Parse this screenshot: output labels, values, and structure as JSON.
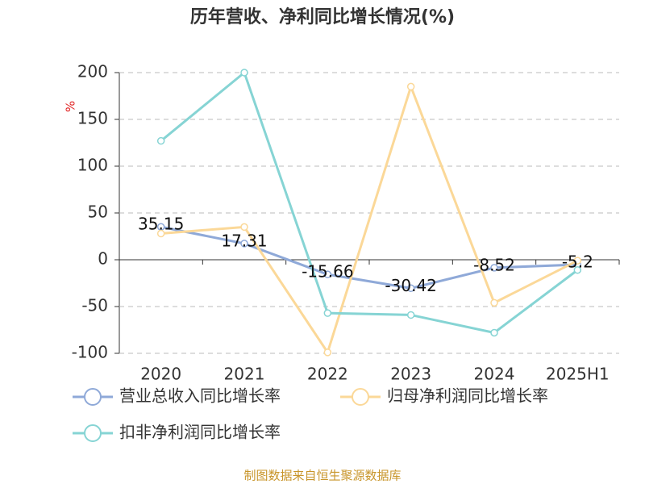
{
  "chart_data": {
    "type": "line",
    "title": "历年营收、净利同比增长情况(%)",
    "y_label": "%",
    "source": "制图数据来自恒生聚源数据库",
    "categories": [
      "2020",
      "2021",
      "2022",
      "2023",
      "2024",
      "2025H1"
    ],
    "series": [
      {
        "name": "营业总收入同比增长率",
        "color": "#8fa9d8",
        "values": [
          35.15,
          17.31,
          -15.66,
          -30.42,
          -8.52,
          -5.2
        ],
        "show_labels": true
      },
      {
        "name": "归母净利润同比增长率",
        "color": "#fbd898",
        "values": [
          28,
          35,
          -99,
          185,
          -46,
          -1
        ],
        "show_labels": false
      },
      {
        "name": "扣非净利润同比增长率",
        "color": "#86d4d4",
        "values": [
          127,
          200,
          -57,
          -59,
          -78,
          -11
        ],
        "show_labels": false
      }
    ],
    "ylim": [
      -100,
      200
    ],
    "yticks": [
      -100,
      -50,
      0,
      50,
      100,
      150,
      200
    ],
    "grid": true
  }
}
